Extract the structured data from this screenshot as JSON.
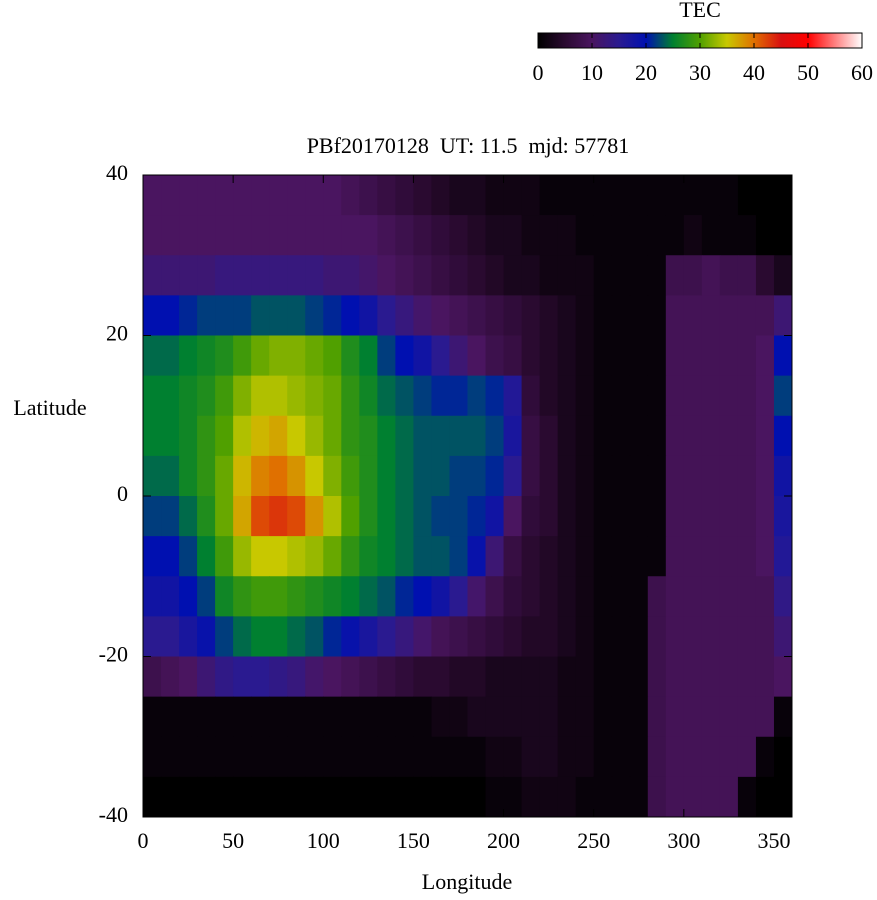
{
  "chart_data": {
    "type": "heatmap",
    "title": "PBf20170128  UT: 11.5  mjd: 57781",
    "xlabel": "Longitude",
    "ylabel": "Latitude",
    "colorbar_title": "TEC",
    "x": [
      0,
      10,
      20,
      30,
      40,
      50,
      60,
      70,
      80,
      90,
      100,
      110,
      120,
      130,
      140,
      150,
      160,
      170,
      180,
      190,
      200,
      210,
      220,
      230,
      240,
      250,
      260,
      270,
      280,
      290,
      300,
      310,
      320,
      330,
      340,
      350
    ],
    "y": [
      35,
      30,
      25,
      20,
      15,
      10,
      5,
      0,
      -5,
      -10,
      -15,
      -20,
      -25,
      -30,
      -35,
      -40
    ],
    "values": [
      [
        10,
        10,
        10,
        10,
        10,
        10,
        10,
        10,
        10,
        10,
        10,
        9,
        8,
        7,
        6,
        5,
        4,
        3,
        3,
        2,
        2,
        2,
        1,
        1,
        1,
        1,
        1,
        1,
        1,
        1,
        1,
        1,
        1,
        0,
        0,
        0
      ],
      [
        10,
        10,
        10,
        10,
        10,
        10,
        10,
        10,
        10,
        10,
        10,
        10,
        10,
        9,
        8,
        7,
        6,
        5,
        4,
        3,
        3,
        2,
        2,
        2,
        1,
        1,
        1,
        1,
        1,
        1,
        2,
        1,
        1,
        1,
        0,
        0
      ],
      [
        12,
        12,
        12,
        12,
        13,
        13,
        13,
        13,
        13,
        13,
        12,
        12,
        11,
        10,
        9,
        8,
        7,
        6,
        5,
        4,
        3,
        3,
        2,
        2,
        2,
        1,
        1,
        1,
        1,
        8,
        8,
        9,
        8,
        8,
        5,
        3
      ],
      [
        20,
        20,
        21,
        22,
        22,
        22,
        23,
        23,
        23,
        22,
        21,
        20,
        18,
        15,
        13,
        11,
        10,
        9,
        8,
        7,
        6,
        5,
        4,
        3,
        2,
        1,
        1,
        1,
        1,
        9,
        9,
        9,
        9,
        9,
        9,
        12
      ],
      [
        24,
        24,
        25,
        26,
        27,
        29,
        31,
        32,
        32,
        31,
        30,
        27,
        25,
        22,
        20,
        18,
        15,
        12,
        10,
        8,
        7,
        5,
        4,
        3,
        2,
        1,
        1,
        1,
        1,
        9,
        9,
        9,
        9,
        9,
        10,
        20
      ],
      [
        25,
        25,
        26,
        27,
        29,
        32,
        34,
        34,
        33,
        32,
        31,
        28,
        26,
        24,
        23,
        22,
        21,
        21,
        22,
        21,
        16,
        6,
        4,
        3,
        2,
        1,
        1,
        1,
        1,
        9,
        9,
        9,
        9,
        9,
        10,
        22
      ],
      [
        25,
        25,
        26,
        28,
        30,
        34,
        36,
        37,
        35,
        33,
        31,
        28,
        27,
        25,
        24,
        23,
        23,
        23,
        23,
        22,
        17,
        7,
        5,
        3,
        2,
        1,
        1,
        1,
        1,
        9,
        9,
        9,
        9,
        9,
        10,
        20
      ],
      [
        24,
        24,
        26,
        28,
        31,
        36,
        39,
        40,
        38,
        35,
        32,
        29,
        27,
        25,
        24,
        23,
        23,
        22,
        22,
        21,
        15,
        7,
        5,
        3,
        2,
        1,
        1,
        1,
        1,
        9,
        9,
        9,
        9,
        9,
        10,
        18
      ],
      [
        22,
        22,
        24,
        27,
        31,
        37,
        42,
        43,
        42,
        38,
        34,
        30,
        27,
        25,
        24,
        23,
        22,
        22,
        21,
        18,
        10,
        6,
        5,
        3,
        2,
        1,
        1,
        1,
        1,
        9,
        9,
        9,
        9,
        9,
        10,
        17
      ],
      [
        20,
        20,
        22,
        25,
        29,
        33,
        35,
        35,
        34,
        33,
        31,
        28,
        26,
        25,
        24,
        23,
        23,
        22,
        19,
        12,
        7,
        5,
        4,
        3,
        2,
        1,
        1,
        1,
        1,
        9,
        9,
        9,
        9,
        9,
        10,
        16
      ],
      [
        18,
        18,
        20,
        22,
        26,
        28,
        29,
        29,
        28,
        27,
        26,
        25,
        24,
        23,
        21,
        20,
        18,
        15,
        11,
        8,
        6,
        5,
        4,
        3,
        2,
        1,
        1,
        1,
        8,
        9,
        9,
        9,
        9,
        9,
        9,
        14
      ],
      [
        15,
        15,
        17,
        19,
        22,
        24,
        25,
        25,
        24,
        23,
        21,
        19,
        17,
        15,
        13,
        11,
        9,
        8,
        7,
        6,
        5,
        4,
        4,
        3,
        2,
        1,
        1,
        1,
        8,
        9,
        9,
        9,
        9,
        9,
        9,
        12
      ],
      [
        8,
        9,
        10,
        12,
        14,
        15,
        15,
        14,
        13,
        11,
        10,
        9,
        8,
        7,
        6,
        5,
        5,
        4,
        4,
        3,
        3,
        3,
        3,
        2,
        2,
        1,
        1,
        1,
        8,
        9,
        9,
        9,
        9,
        9,
        9,
        10
      ],
      [
        1,
        1,
        1,
        1,
        1,
        1,
        1,
        1,
        1,
        1,
        1,
        1,
        1,
        1,
        1,
        1,
        2,
        2,
        3,
        3,
        3,
        3,
        3,
        2,
        2,
        1,
        1,
        1,
        8,
        9,
        9,
        9,
        9,
        9,
        9,
        1
      ],
      [
        1,
        1,
        1,
        1,
        1,
        1,
        1,
        1,
        1,
        1,
        1,
        1,
        1,
        1,
        1,
        1,
        1,
        1,
        1,
        2,
        2,
        3,
        3,
        2,
        2,
        1,
        1,
        1,
        8,
        9,
        9,
        9,
        9,
        9,
        1,
        0
      ],
      [
        0,
        0,
        0,
        0,
        0,
        0,
        0,
        0,
        0,
        0,
        0,
        0,
        0,
        0,
        0,
        0,
        0,
        0,
        0,
        1,
        1,
        2,
        2,
        2,
        1,
        1,
        1,
        1,
        8,
        9,
        9,
        9,
        9,
        1,
        0,
        0
      ]
    ],
    "cell_width": 10,
    "cell_height": 5,
    "xlim": [
      0,
      360
    ],
    "ylim": [
      -40,
      40
    ],
    "xticks": [
      0,
      50,
      100,
      150,
      200,
      250,
      300,
      350
    ],
    "yticks": [
      -40,
      -20,
      0,
      20,
      40
    ],
    "clim": [
      0,
      60
    ],
    "cticks": [
      0,
      10,
      20,
      30,
      40,
      50,
      60
    ],
    "colormap": [
      "#000000",
      "#2a0a30",
      "#4a1560",
      "#2a1a90",
      "#0010b0",
      "#008030",
      "#50a000",
      "#c8c800",
      "#e07000",
      "#d81010",
      "#ff0000",
      "#ff8080",
      "#ffffff"
    ]
  }
}
